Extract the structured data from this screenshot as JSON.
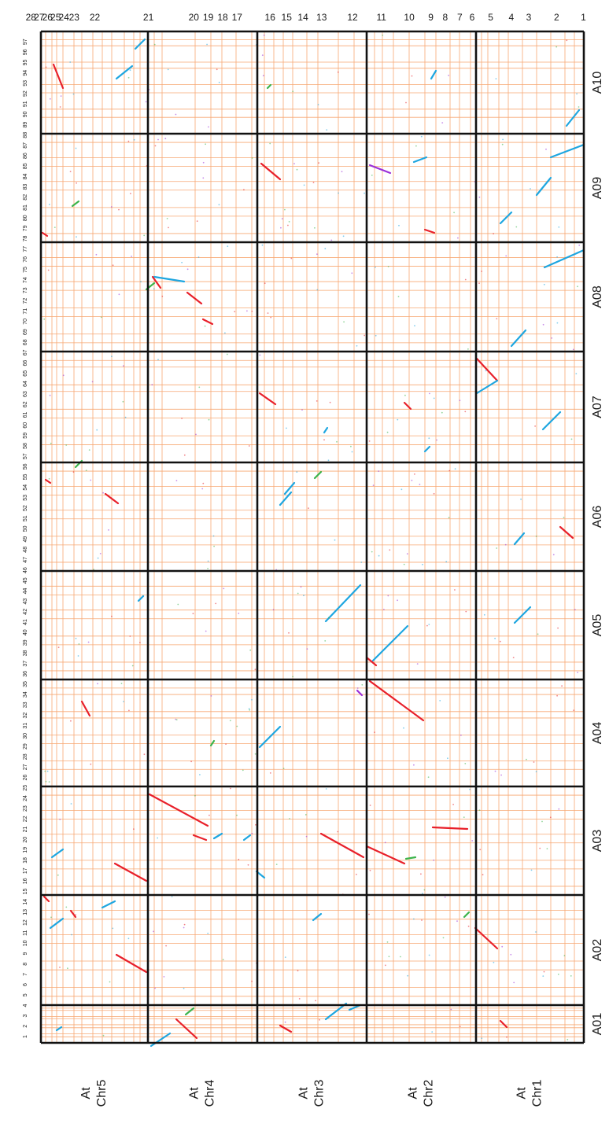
{
  "top_block_labels": [
    "28",
    "27",
    "26",
    "25",
    "24",
    "23",
    "22",
    "21",
    "20",
    "19",
    "18",
    "17",
    "16",
    "15",
    "14",
    "13",
    "12",
    "11",
    "10",
    "9",
    "8",
    "7",
    "6",
    "5",
    "4",
    "3",
    "2",
    "1"
  ],
  "left_block_labels": [
    "1",
    "2",
    "3",
    "4",
    "5",
    "6",
    "7",
    "8",
    "9",
    "10",
    "11",
    "12",
    "13",
    "14",
    "15",
    "16",
    "17",
    "18",
    "19",
    "20",
    "21",
    "22",
    "23",
    "24",
    "25",
    "26",
    "27",
    "28",
    "29",
    "30",
    "31",
    "32",
    "33",
    "34",
    "35",
    "36",
    "37",
    "38",
    "39",
    "40",
    "41",
    "42",
    "43",
    "44",
    "45",
    "46",
    "47",
    "48",
    "49",
    "50",
    "51",
    "52",
    "53",
    "54",
    "55",
    "56",
    "57",
    "58",
    "59",
    "60",
    "61",
    "62",
    "63",
    "64",
    "65",
    "66",
    "67",
    "68",
    "69",
    "70",
    "71",
    "72",
    "73",
    "74",
    "75",
    "76",
    "77",
    "78",
    "79",
    "80",
    "81",
    "82",
    "83",
    "84",
    "85",
    "86",
    "87",
    "88",
    "89",
    "90",
    "91",
    "92",
    "93",
    "94",
    "95",
    "96",
    "97"
  ],
  "brassica_chromosomes": [
    "A01",
    "A02",
    "A03",
    "A04",
    "A05",
    "A06",
    "A07",
    "A08",
    "A09",
    "A10"
  ],
  "arabidopsis_chromosomes": [
    {
      "line1": "At",
      "line2": "Chr5"
    },
    {
      "line1": "At",
      "line2": "Chr4"
    },
    {
      "line1": "At",
      "line2": "Chr3"
    },
    {
      "line1": "At",
      "line2": "Chr2"
    },
    {
      "line1": "At",
      "line2": "Chr1"
    }
  ],
  "colors": {
    "grid": "#f7a873",
    "frame": "#111111",
    "segment_red": "#e8202a",
    "segment_blue": "#1ea6e0",
    "segment_green": "#3cb44b",
    "segment_purple": "#9b30d9",
    "background": "#ffffff"
  }
}
